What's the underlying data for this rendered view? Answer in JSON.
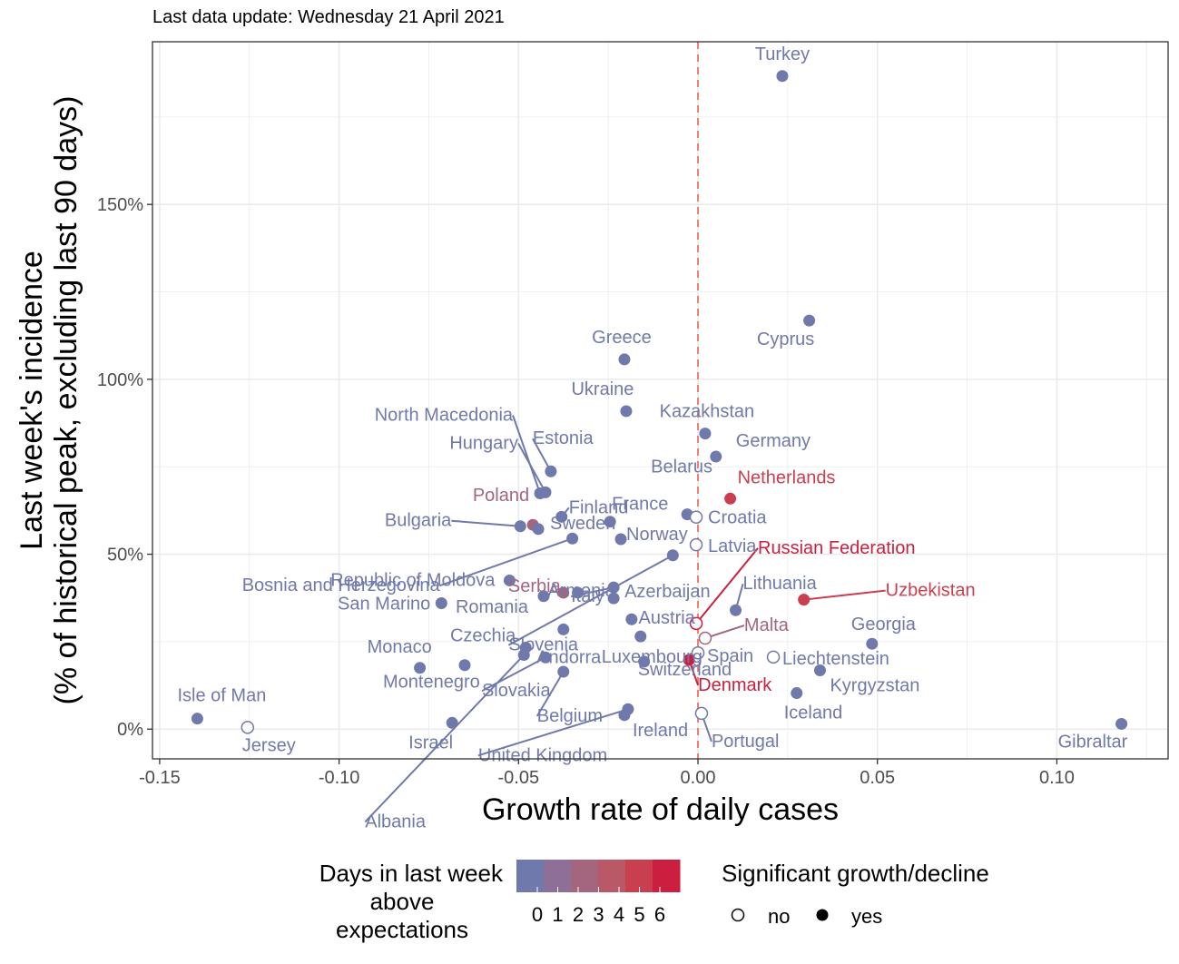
{
  "subtitle": "Last data update: Wednesday 21 April 2021",
  "colors": {
    "grid": "#ebebeb",
    "panel_border": "#333333",
    "vline": "#f08070",
    "gradient": [
      "#7079ab",
      "#8e6f98",
      "#a4657f",
      "#b95967",
      "#c93f4f",
      "#cc1f3f"
    ]
  },
  "legend": {
    "days_title_lines": [
      "Days in last week",
      "above",
      "expectations"
    ],
    "days_ticks": [
      "0",
      "1",
      "2",
      "3",
      "4",
      "5",
      "6"
    ],
    "sig_title": "Significant growth/decline",
    "sig_no": "no",
    "sig_yes": "yes"
  },
  "chart_data": {
    "type": "scatter",
    "xlabel": "Growth rate of daily cases",
    "ylabel_lines": [
      "Last week's incidence",
      "(% of historical peak, excluding last 90 days)"
    ],
    "xlim": [
      -0.152,
      0.131
    ],
    "ylim": [
      -0.085,
      1.965
    ],
    "xticks": [
      -0.15,
      -0.1,
      -0.05,
      0.0,
      0.05,
      0.1
    ],
    "xtick_labels": [
      "-0.15",
      "-0.10",
      "-0.05",
      "0.00",
      "0.05",
      "0.10"
    ],
    "yticks": [
      0.0,
      0.5,
      1.0,
      1.5
    ],
    "ytick_labels": [
      "0%",
      "50%",
      "100%",
      "150%"
    ],
    "vline_x": 0.0,
    "grid": true,
    "points": [
      {
        "name": "Turkey",
        "x": 0.0235,
        "y": 1.867,
        "days": 0,
        "sig": true
      },
      {
        "name": "Cyprus",
        "x": 0.031,
        "y": 1.168,
        "days": 0,
        "sig": true
      },
      {
        "name": "Greece",
        "x": -0.0205,
        "y": 1.057,
        "days": 0,
        "sig": true
      },
      {
        "name": "Ukraine",
        "x": -0.02,
        "y": 0.909,
        "days": 0,
        "sig": true
      },
      {
        "name": "Kazakhstan",
        "x": 0.002,
        "y": 0.845,
        "days": 0,
        "sig": true
      },
      {
        "name": "Germany",
        "x": 0.005,
        "y": 0.779,
        "days": 0,
        "sig": true
      },
      {
        "name": "Estonia",
        "x": -0.041,
        "y": 0.737,
        "days": 0,
        "sig": true
      },
      {
        "name": "North Macedonia",
        "x": -0.044,
        "y": 0.674,
        "days": 0,
        "sig": true
      },
      {
        "name": "Hungary",
        "x": -0.0425,
        "y": 0.677,
        "days": 0,
        "sig": true
      },
      {
        "name": "Finland",
        "x": -0.038,
        "y": 0.607,
        "days": 0,
        "sig": true
      },
      {
        "name": "Netherlands",
        "x": 0.009,
        "y": 0.659,
        "days": 4,
        "sig": true
      },
      {
        "name": "Belarus",
        "x": -0.003,
        "y": 0.614,
        "days": 0,
        "sig": true
      },
      {
        "name": "France",
        "x": -0.0245,
        "y": 0.593,
        "days": 0,
        "sig": true
      },
      {
        "name": "Croatia",
        "x": -0.0005,
        "y": 0.606,
        "days": 0,
        "sig": false
      },
      {
        "name": "Bulgaria",
        "x": -0.0495,
        "y": 0.58,
        "days": 0,
        "sig": true
      },
      {
        "name": "Poland",
        "x": -0.046,
        "y": 0.584,
        "days": 2,
        "sig": true
      },
      {
        "name": "Sweden",
        "x": -0.0445,
        "y": 0.572,
        "days": 0,
        "sig": true
      },
      {
        "name": "Norway",
        "x": -0.0215,
        "y": 0.543,
        "days": 0,
        "sig": true
      },
      {
        "name": "Bosnia and Herzegovina",
        "x": -0.035,
        "y": 0.545,
        "days": 0,
        "sig": true
      },
      {
        "name": "Latvia",
        "x": -0.0005,
        "y": 0.527,
        "days": 0,
        "sig": false
      },
      {
        "name": "Slovenia",
        "x": -0.007,
        "y": 0.497,
        "days": 0,
        "sig": true
      },
      {
        "name": "Italy",
        "x": -0.0235,
        "y": 0.405,
        "days": 0,
        "sig": true
      },
      {
        "name": "Russian Federation",
        "x": -0.0005,
        "y": 0.302,
        "days": 6,
        "sig": false
      },
      {
        "name": "Republic of Moldova",
        "x": -0.0525,
        "y": 0.425,
        "days": 0,
        "sig": true
      },
      {
        "name": "Serbia",
        "x": -0.0375,
        "y": 0.39,
        "days": 2,
        "sig": true
      },
      {
        "name": "Azerbaijan",
        "x": -0.0235,
        "y": 0.374,
        "days": 0,
        "sig": true
      },
      {
        "name": "Lithuania",
        "x": 0.0105,
        "y": 0.34,
        "days": 0,
        "sig": true
      },
      {
        "name": "Uzbekistan",
        "x": 0.0295,
        "y": 0.37,
        "days": 4,
        "sig": true
      },
      {
        "name": "San Marino",
        "x": -0.0715,
        "y": 0.36,
        "days": 0,
        "sig": true
      },
      {
        "name": "Romania",
        "x": -0.043,
        "y": 0.38,
        "days": 0,
        "sig": true
      },
      {
        "name": "Austria",
        "x": -0.0335,
        "y": 0.39,
        "days": 0,
        "sig": true
      },
      {
        "name": "Armenia",
        "x": -0.0185,
        "y": 0.314,
        "days": 0,
        "sig": true
      },
      {
        "name": "Malta",
        "x": 0.002,
        "y": 0.26,
        "days": 2,
        "sig": false
      },
      {
        "name": "Georgia",
        "x": 0.0485,
        "y": 0.244,
        "days": 0,
        "sig": true
      },
      {
        "name": "Czechia",
        "x": -0.048,
        "y": 0.233,
        "days": 0,
        "sig": true
      },
      {
        "name": "Andorra",
        "x": -0.0375,
        "y": 0.285,
        "days": 0,
        "sig": true
      },
      {
        "name": "Luxembourg",
        "x": -0.016,
        "y": 0.265,
        "days": 0,
        "sig": true
      },
      {
        "name": "Spain",
        "x": 0.0,
        "y": 0.218,
        "days": 0,
        "sig": false
      },
      {
        "name": "Liechtenstein",
        "x": 0.021,
        "y": 0.206,
        "days": 0,
        "sig": false
      },
      {
        "name": "Denmark",
        "x": -0.0025,
        "y": 0.198,
        "days": 6,
        "sig": true
      },
      {
        "name": "Monaco",
        "x": -0.0775,
        "y": 0.175,
        "days": 0,
        "sig": true
      },
      {
        "name": "Montenegro",
        "x": -0.065,
        "y": 0.183,
        "days": 0,
        "sig": true
      },
      {
        "name": "Slovakia",
        "x": -0.0425,
        "y": 0.205,
        "days": 0,
        "sig": true
      },
      {
        "name": "Switzerland",
        "x": -0.015,
        "y": 0.193,
        "days": 0,
        "sig": true
      },
      {
        "name": "Kyrgyzstan",
        "x": 0.034,
        "y": 0.168,
        "days": 0,
        "sig": true
      },
      {
        "name": "Albania",
        "x": -0.0485,
        "y": 0.212,
        "days": 0,
        "sig": true
      },
      {
        "name": "Belgium",
        "x": -0.0375,
        "y": 0.164,
        "days": 0,
        "sig": true
      },
      {
        "name": "Iceland",
        "x": 0.0275,
        "y": 0.103,
        "days": 0,
        "sig": true
      },
      {
        "name": "Isle of Man",
        "x": -0.1395,
        "y": 0.03,
        "days": 0,
        "sig": true
      },
      {
        "name": "Jersey",
        "x": -0.1255,
        "y": 0.005,
        "days": 0,
        "sig": false
      },
      {
        "name": "Israel",
        "x": -0.0685,
        "y": 0.018,
        "days": 0,
        "sig": true
      },
      {
        "name": "United Kingdom",
        "x": -0.0195,
        "y": 0.057,
        "days": 0,
        "sig": true
      },
      {
        "name": "Ireland",
        "x": -0.0205,
        "y": 0.04,
        "days": 0,
        "sig": true
      },
      {
        "name": "Portugal",
        "x": 0.001,
        "y": 0.045,
        "days": 0,
        "sig": false
      },
      {
        "name": "Gibraltar",
        "x": 0.118,
        "y": 0.015,
        "days": 0,
        "sig": true
      }
    ]
  }
}
